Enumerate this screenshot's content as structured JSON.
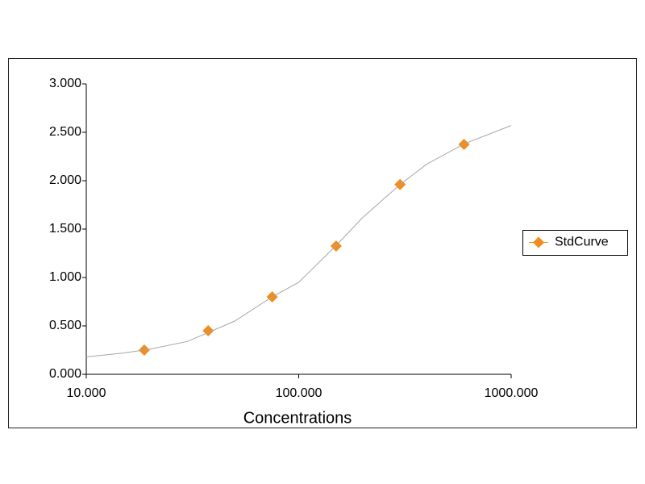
{
  "chart_data": {
    "type": "scatter",
    "x_scale": "log",
    "xlabel": "Concentrations",
    "series": [
      {
        "name": "StdCurve",
        "color": "#f28c1c",
        "marker": "diamond",
        "x": [
          18.75,
          37.5,
          75,
          150,
          300,
          600
        ],
        "values": [
          0.25,
          0.45,
          0.8,
          1.325,
          1.96,
          2.375
        ]
      },
      {
        "color": "#a6a6a6",
        "style": "line",
        "x": [
          10,
          15,
          20,
          30,
          50,
          75,
          100,
          150,
          200,
          300,
          400,
          600,
          1000
        ],
        "values": [
          0.18,
          0.22,
          0.26,
          0.34,
          0.55,
          0.8,
          0.95,
          1.33,
          1.62,
          1.96,
          2.17,
          2.38,
          2.57
        ]
      }
    ],
    "xlim": [
      10,
      1000
    ],
    "xticks": [
      {
        "value": 10,
        "label": "10.000"
      },
      {
        "value": 100,
        "label": "100.000"
      },
      {
        "value": 1000,
        "label": "1000.000"
      }
    ],
    "ylim": [
      0,
      3
    ],
    "yticks": [
      {
        "value": 0,
        "label": "0.000"
      },
      {
        "value": 0.5,
        "label": "0.500"
      },
      {
        "value": 1,
        "label": "1.000"
      },
      {
        "value": 1.5,
        "label": "1.500"
      },
      {
        "value": 2,
        "label": "2.000"
      },
      {
        "value": 2.5,
        "label": "2.500"
      },
      {
        "value": 3,
        "label": "3.000"
      }
    ],
    "grid": false,
    "legend": "right"
  }
}
